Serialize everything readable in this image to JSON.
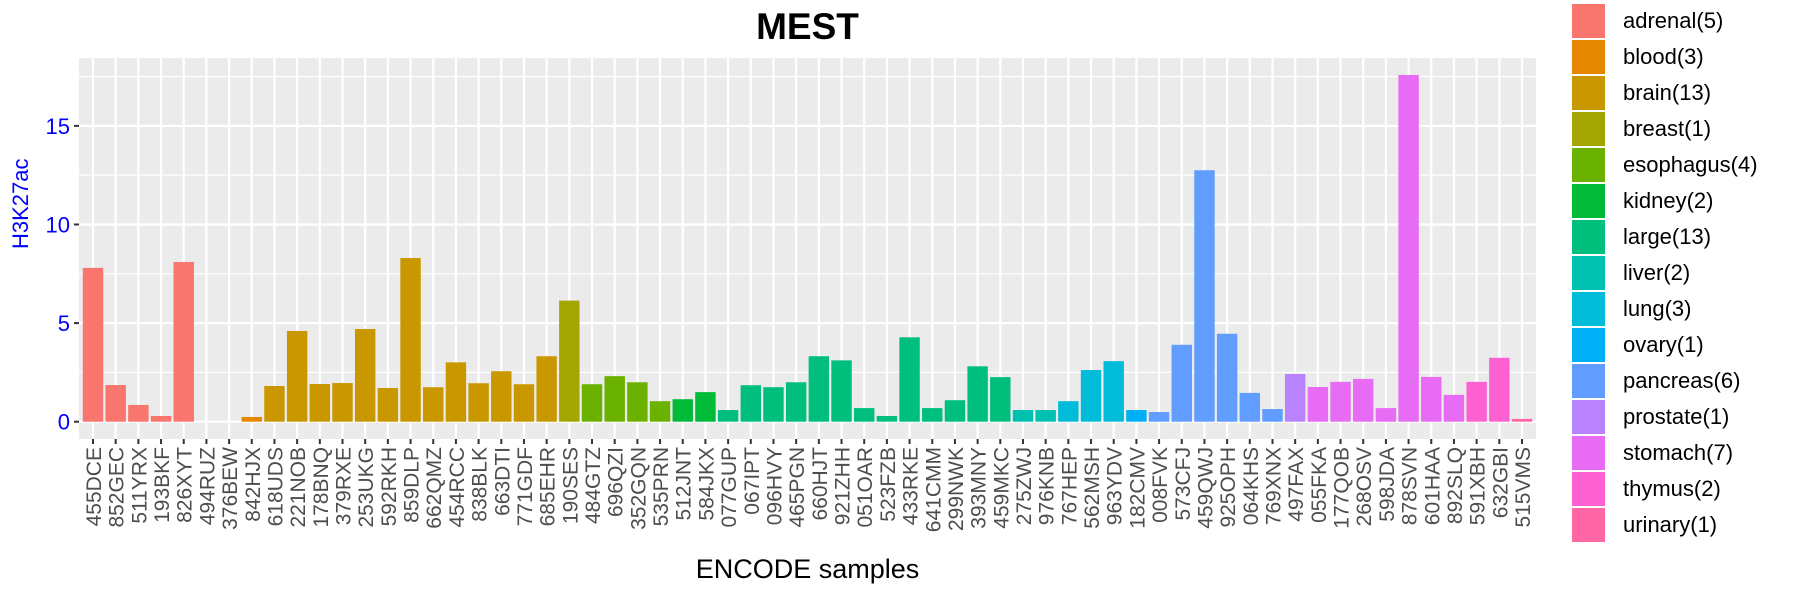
{
  "chart_data": {
    "type": "bar",
    "title": "MEST",
    "xlabel": "ENCODE samples",
    "ylabel": "H3K27ac",
    "ylim": [
      -0.8,
      18.3
    ],
    "yticks": [
      0,
      5,
      10,
      15
    ],
    "grid": true,
    "legend_position": "right",
    "categories": [
      "455DCE",
      "852GEC",
      "511YRX",
      "193BKF",
      "826XYT",
      "494RUZ",
      "376BEW",
      "842HJX",
      "618UDS",
      "221NOB",
      "178BNQ",
      "379RXE",
      "253UKG",
      "592RKH",
      "859DLP",
      "662QMZ",
      "454RCC",
      "838BLK",
      "663DTI",
      "771GDF",
      "685EHR",
      "190SES",
      "484GTZ",
      "696QZI",
      "352GQN",
      "535PRN",
      "512JNT",
      "584JKX",
      "077GUP",
      "067IPT",
      "096HVY",
      "465PGN",
      "660HJT",
      "921ZHH",
      "051OAR",
      "523FZB",
      "433RKE",
      "641CMM",
      "299NWK",
      "393MNY",
      "459MKC",
      "275ZWJ",
      "976KNB",
      "767HEP",
      "562MSH",
      "963YDV",
      "182CMV",
      "008FVK",
      "573CFJ",
      "459QWJ",
      "925OPH",
      "064KHS",
      "769XNX",
      "497FAX",
      "055FKA",
      "177QOB",
      "268OSV",
      "598JDA",
      "878SVN",
      "601HAA",
      "892SLQ",
      "591XBH",
      "632GBI",
      "515VMS"
    ],
    "values": [
      7.8,
      1.86,
      0.85,
      0.29,
      8.1,
      0,
      0,
      0.24,
      1.81,
      4.6,
      1.91,
      1.96,
      4.7,
      1.71,
      8.3,
      1.75,
      3.01,
      1.95,
      2.56,
      1.9,
      3.32,
      6.14,
      1.9,
      2.31,
      2.0,
      1.04,
      1.14,
      1.5,
      0.59,
      1.85,
      1.75,
      2.0,
      3.32,
      3.11,
      0.69,
      0.29,
      4.28,
      0.69,
      1.09,
      2.81,
      2.26,
      0.59,
      0.59,
      1.04,
      2.62,
      3.07,
      0.59,
      0.49,
      3.9,
      12.75,
      4.46,
      1.46,
      0.64,
      2.42,
      1.76,
      2.02,
      2.17,
      0.69,
      17.58,
      2.27,
      1.36,
      2.02,
      3.24,
      0.14
    ],
    "groups": [
      "adrenal",
      "adrenal",
      "adrenal",
      "adrenal",
      "adrenal",
      "blood",
      "blood",
      "blood",
      "brain",
      "brain",
      "brain",
      "brain",
      "brain",
      "brain",
      "brain",
      "brain",
      "brain",
      "brain",
      "brain",
      "brain",
      "brain",
      "breast",
      "esophagus",
      "esophagus",
      "esophagus",
      "esophagus",
      "kidney",
      "kidney",
      "large",
      "large",
      "large",
      "large",
      "large",
      "large",
      "large",
      "large",
      "large",
      "large",
      "large",
      "large",
      "large",
      "liver",
      "liver",
      "lung",
      "lung",
      "lung",
      "ovary",
      "pancreas",
      "pancreas",
      "pancreas",
      "pancreas",
      "pancreas",
      "pancreas",
      "prostate",
      "stomach",
      "stomach",
      "stomach",
      "stomach",
      "stomach",
      "stomach",
      "stomach",
      "thymus",
      "thymus",
      "urinary"
    ],
    "legend": [
      {
        "key": "adrenal",
        "label": "adrenal(5)",
        "color": "#F8766D"
      },
      {
        "key": "blood",
        "label": "blood(3)",
        "color": "#E58700"
      },
      {
        "key": "brain",
        "label": "brain(13)",
        "color": "#C99800"
      },
      {
        "key": "breast",
        "label": "breast(1)",
        "color": "#A3A500"
      },
      {
        "key": "esophagus",
        "label": "esophagus(4)",
        "color": "#6BB100"
      },
      {
        "key": "kidney",
        "label": "kidney(2)",
        "color": "#00BA38"
      },
      {
        "key": "large",
        "label": "large(13)",
        "color": "#00BF7D"
      },
      {
        "key": "liver",
        "label": "liver(2)",
        "color": "#00C0AF"
      },
      {
        "key": "lung",
        "label": "lung(3)",
        "color": "#00BCD8"
      },
      {
        "key": "ovary",
        "label": "ovary(1)",
        "color": "#00B0F6"
      },
      {
        "key": "pancreas",
        "label": "pancreas(6)",
        "color": "#619CFF"
      },
      {
        "key": "prostate",
        "label": "prostate(1)",
        "color": "#B983FF"
      },
      {
        "key": "stomach",
        "label": "stomach(7)",
        "color": "#E76BF3"
      },
      {
        "key": "thymus",
        "label": "thymus(2)",
        "color": "#FD61D1"
      },
      {
        "key": "urinary",
        "label": "urinary(1)",
        "color": "#FF67A4"
      }
    ]
  },
  "colors": {
    "panel_bg": "#EBEBEB",
    "grid": "#FFFFFF",
    "y_axis_text": "#0000FF",
    "x_tick_text": "#4D4D4D"
  }
}
